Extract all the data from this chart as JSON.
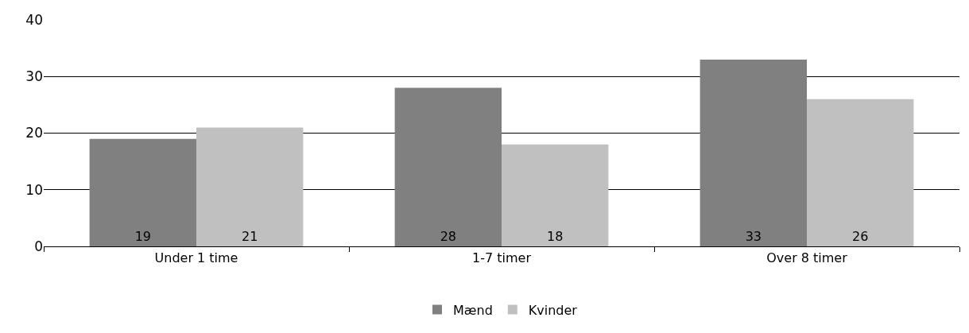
{
  "chart_data": {
    "type": "bar",
    "categories": [
      "Under 1 time",
      "1-7 timer",
      "Over 8 timer"
    ],
    "series": [
      {
        "name": "Mænd",
        "color": "#808080",
        "values": [
          19,
          28,
          33
        ]
      },
      {
        "name": "Kvinder",
        "color": "#c0c0c0",
        "values": [
          21,
          18,
          26
        ]
      }
    ],
    "ylim": [
      0,
      40
    ],
    "yticks": [
      0,
      10,
      20,
      30,
      40
    ],
    "grid": "y",
    "legend": "bottom",
    "data_labels": true
  }
}
